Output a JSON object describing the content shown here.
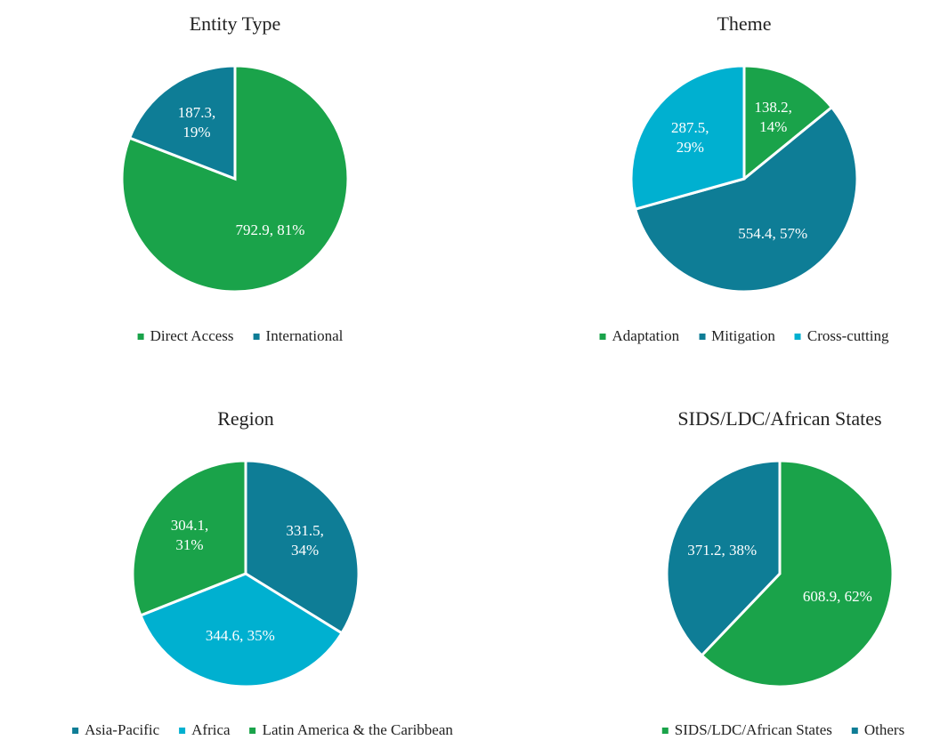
{
  "chart_data": [
    {
      "type": "pie",
      "title": "Entity Type",
      "categories": [
        "Direct Access",
        "International"
      ],
      "values": [
        792.9,
        187.3
      ],
      "value_labels": [
        "792.9, 81%",
        "187.3, 19%"
      ],
      "colors": [
        "#1aa34a",
        "#0e7d96"
      ],
      "legend": "bottom"
    },
    {
      "type": "pie",
      "title": "Theme",
      "categories": [
        "Adaptation",
        "Mitigation",
        "Cross-cutting"
      ],
      "values": [
        138.2,
        554.4,
        287.5
      ],
      "value_labels": [
        "138.2, 14%",
        "554.4, 57%",
        "287.5, 29%"
      ],
      "colors": [
        "#1aa34a",
        "#0e7d96",
        "#00b0d0"
      ],
      "legend": "bottom"
    },
    {
      "type": "pie",
      "title": "Region",
      "categories": [
        "Asia-Pacific",
        "Africa",
        "Latin America & the Caribbean"
      ],
      "values": [
        331.5,
        344.6,
        304.1
      ],
      "value_labels": [
        "331.5, 34%",
        "344.6, 35%",
        "304.1, 31%"
      ],
      "colors": [
        "#0e7d96",
        "#00b0d0",
        "#1aa34a"
      ],
      "legend": "bottom"
    },
    {
      "type": "pie",
      "title": "SIDS/LDC/African States",
      "categories": [
        "SIDS/LDC/African States",
        "Others"
      ],
      "values": [
        608.9,
        371.2
      ],
      "value_labels": [
        "608.9, 62%",
        "371.2, 38%"
      ],
      "colors": [
        "#1aa34a",
        "#0e7d96"
      ],
      "legend": "bottom"
    }
  ]
}
